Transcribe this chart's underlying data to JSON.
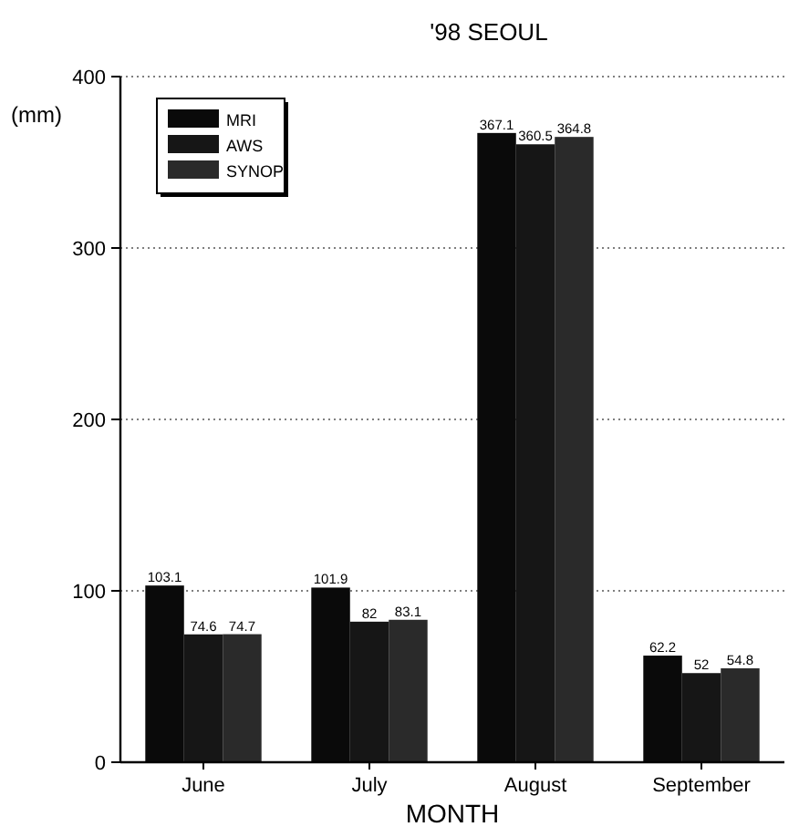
{
  "chart_data": {
    "type": "bar",
    "title": "'98 SEOUL",
    "xlabel": "MONTH",
    "ylabel": "(mm)",
    "categories": [
      "June",
      "July",
      "August",
      "September"
    ],
    "series": [
      {
        "name": "MRI",
        "color": "#0a0a0a",
        "values": [
          103.1,
          101.9,
          367.1,
          62.2
        ]
      },
      {
        "name": "AWS",
        "color": "#161616",
        "values": [
          74.6,
          82,
          360.5,
          52
        ]
      },
      {
        "name": "SYNOP",
        "color": "#2a2a2a",
        "values": [
          74.7,
          83.1,
          364.8,
          54.8
        ]
      }
    ],
    "ylim": [
      0,
      400
    ],
    "yticks": [
      0,
      100,
      200,
      300,
      400
    ],
    "grid": "y",
    "legend": "top left",
    "data_labels": true
  }
}
